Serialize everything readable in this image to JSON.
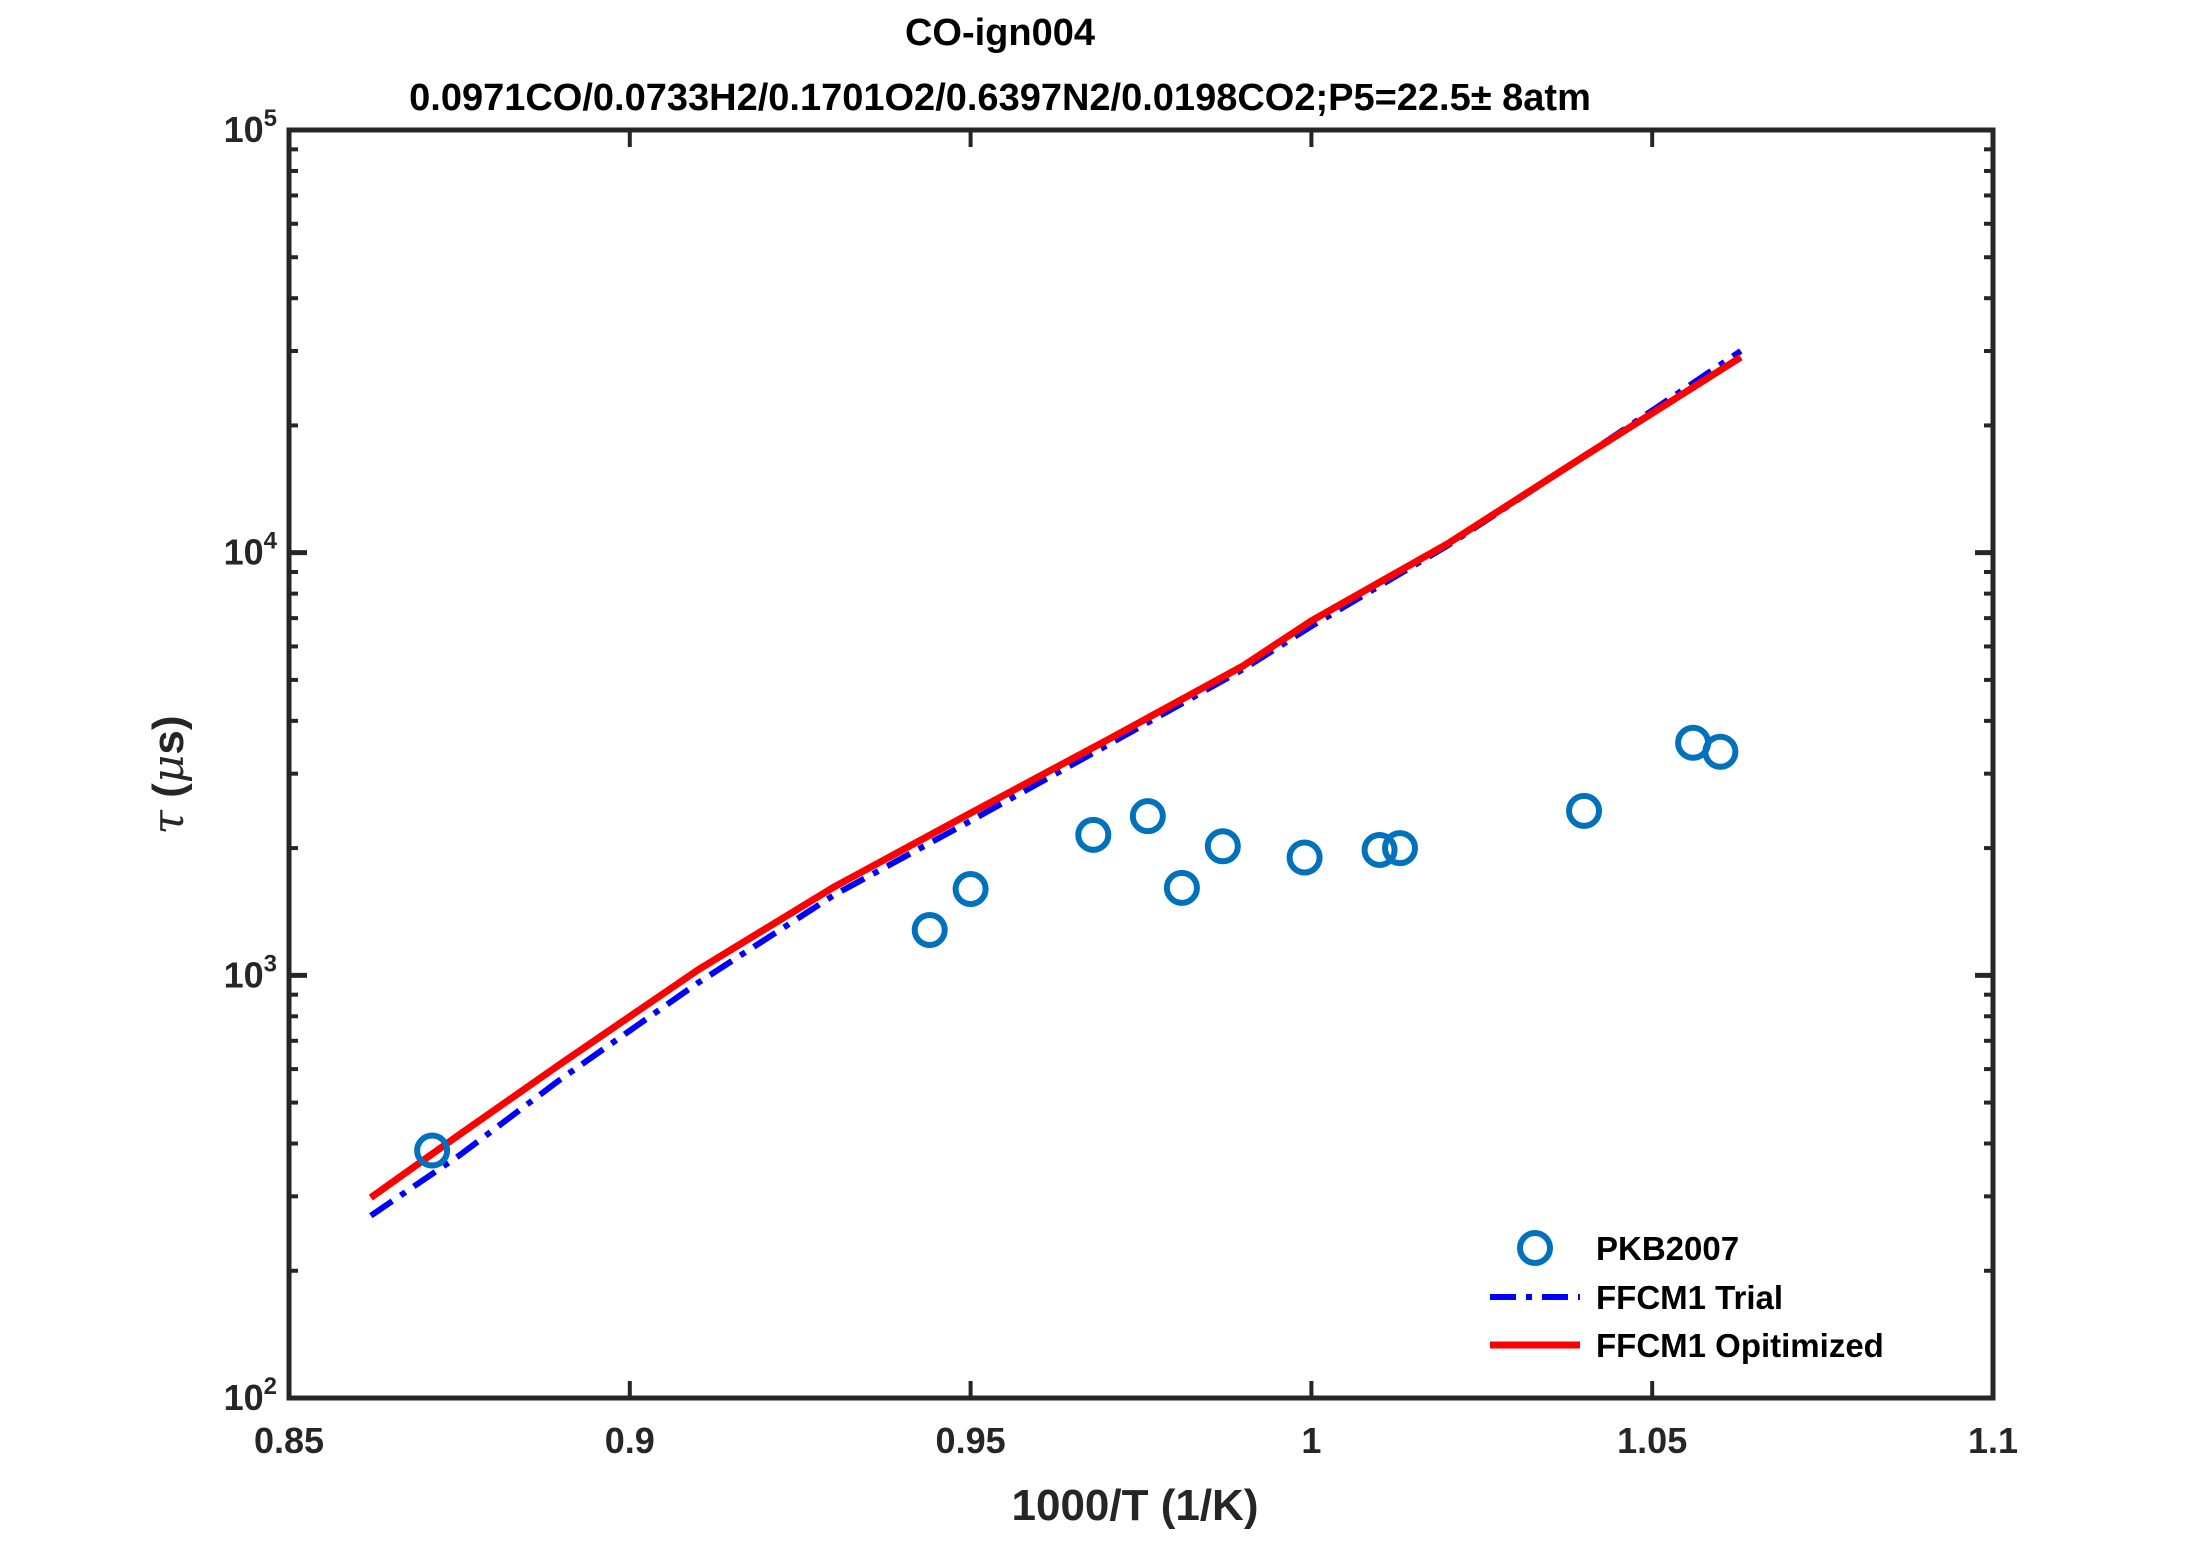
{
  "chart_data": {
    "type": "scatter",
    "title": "CO-ign004",
    "subtitle": "0.0971CO/0.0733H2/0.1701O2/0.6397N2/0.0198CO2;P5=22.5± 8atm",
    "xlabel": "1000/T (1/K)",
    "ylabel_symbol": "τ",
    "ylabel_mu": "μ",
    "ylabel_open": " (",
    "ylabel_close": "s)",
    "xlim": [
      0.85,
      1.1
    ],
    "ylim": [
      100,
      100000
    ],
    "yscale": "log",
    "x_ticks": [
      "0.85",
      "0.9",
      "0.95",
      "1",
      "1.05",
      "1.1"
    ],
    "x_tick_values": [
      0.85,
      0.9,
      0.95,
      1.0,
      1.05,
      1.1
    ],
    "y_ticks": [
      {
        "base": "10",
        "exp": "2",
        "value": 100
      },
      {
        "base": "10",
        "exp": "3",
        "value": 1000
      },
      {
        "base": "10",
        "exp": "4",
        "value": 10000
      },
      {
        "base": "10",
        "exp": "5",
        "value": 100000
      }
    ],
    "grid": false,
    "legend_position": "bottom-right",
    "series": [
      {
        "name": "PKB2007",
        "kind": "markers",
        "color": "#0072BD",
        "points": [
          [
            0.871,
            385
          ],
          [
            0.944,
            1280
          ],
          [
            0.95,
            1600
          ],
          [
            0.968,
            2150
          ],
          [
            0.976,
            2380
          ],
          [
            0.981,
            1610
          ],
          [
            0.987,
            2020
          ],
          [
            0.999,
            1900
          ],
          [
            1.01,
            1980
          ],
          [
            1.013,
            2000
          ],
          [
            1.04,
            2450
          ],
          [
            1.056,
            3550
          ],
          [
            1.06,
            3380
          ]
        ]
      },
      {
        "name": "FFCM1 Trial",
        "kind": "line",
        "style": "dashdot",
        "color": "#0000FF",
        "points": [
          [
            0.862,
            270
          ],
          [
            0.875,
            375
          ],
          [
            0.89,
            570
          ],
          [
            0.91,
            960
          ],
          [
            0.93,
            1550
          ],
          [
            0.95,
            2320
          ],
          [
            0.97,
            3500
          ],
          [
            0.99,
            5300
          ],
          [
            1.0,
            6700
          ],
          [
            1.02,
            10400
          ],
          [
            1.04,
            16900
          ],
          [
            1.063,
            30000
          ]
        ]
      },
      {
        "name": "FFCM1 Opitimized",
        "kind": "line",
        "style": "solid",
        "color": "#FF0000",
        "points": [
          [
            0.862,
            298
          ],
          [
            0.875,
            420
          ],
          [
            0.89,
            620
          ],
          [
            0.91,
            1030
          ],
          [
            0.93,
            1620
          ],
          [
            0.95,
            2420
          ],
          [
            0.97,
            3600
          ],
          [
            0.99,
            5400
          ],
          [
            1.0,
            6900
          ],
          [
            1.02,
            10500
          ],
          [
            1.04,
            16900
          ],
          [
            1.063,
            29000
          ]
        ]
      }
    ]
  }
}
